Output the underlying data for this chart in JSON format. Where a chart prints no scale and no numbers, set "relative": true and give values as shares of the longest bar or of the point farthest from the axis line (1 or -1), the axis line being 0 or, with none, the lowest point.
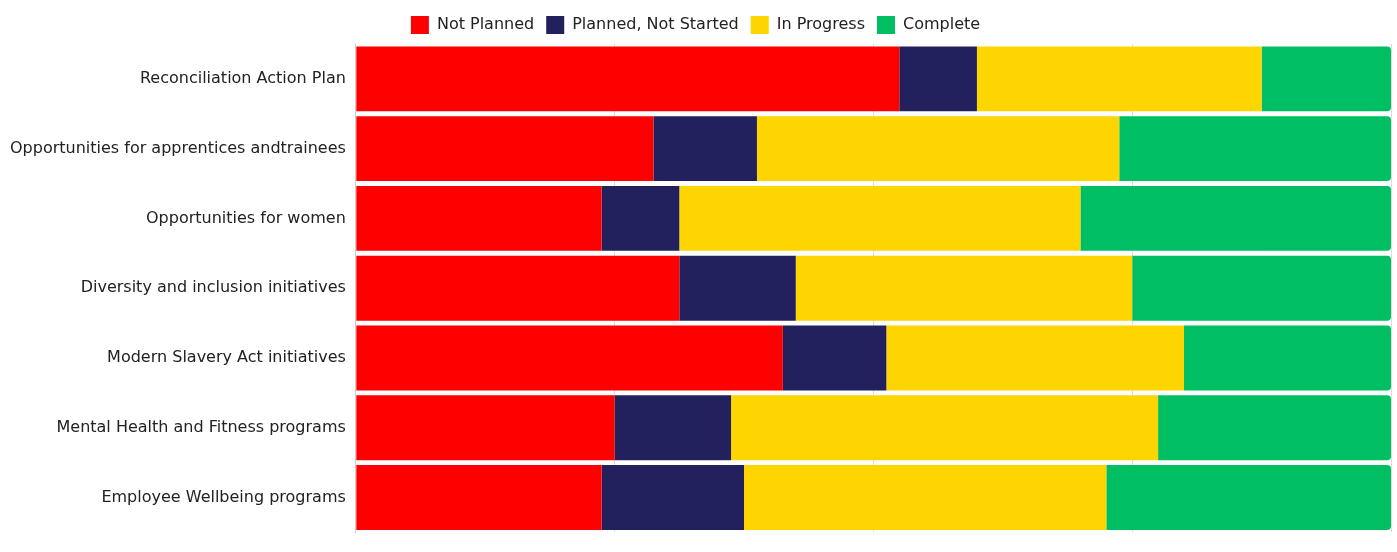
{
  "chart_data": {
    "type": "bar",
    "orientation": "horizontal",
    "stacked": true,
    "relative": true,
    "grid": "x",
    "legend": "top",
    "categories": [
      "Reconciliation Action Plan",
      "Opportunities for apprentices andtrainees",
      "Opportunities for women",
      "Diversity and inclusion initiatives",
      "Modern Slavery Act initiatives",
      "Mental Health and Fitness programs",
      "Employee Wellbeing programs"
    ],
    "series": [
      {
        "name": "Not Planned",
        "color": "#ff0000",
        "values": [
          0.525,
          0.2875,
          0.2375,
          0.3125,
          0.4125,
          0.25,
          0.2375
        ]
      },
      {
        "name": "Planned, Not Started",
        "color": "#22215e",
        "values": [
          0.075,
          0.1,
          0.075,
          0.1125,
          0.1,
          0.1125,
          0.1375
        ]
      },
      {
        "name": "In Progress",
        "color": "#ffd500",
        "values": [
          0.275,
          0.35,
          0.3875,
          0.325,
          0.2875,
          0.4125,
          0.35
        ]
      },
      {
        "name": "Complete",
        "color": "#00bf63",
        "values": [
          0.125,
          0.2625,
          0.3,
          0.25,
          0.2,
          0.225,
          0.275
        ]
      }
    ]
  }
}
